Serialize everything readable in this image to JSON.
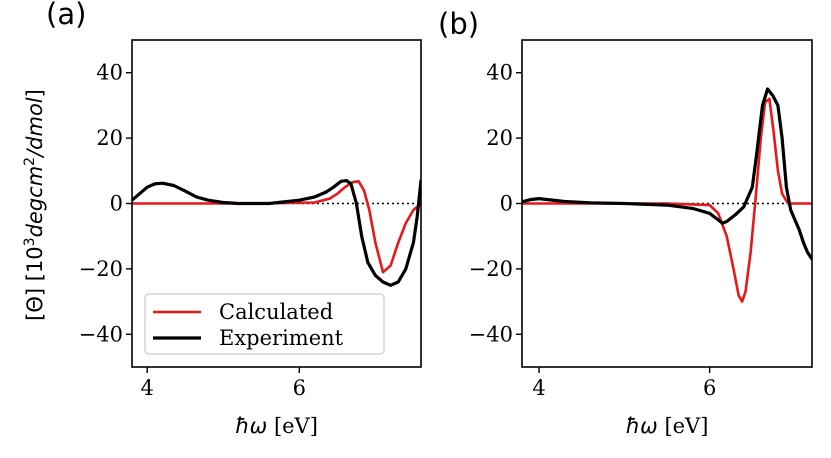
{
  "chart_data": [
    {
      "panel": "(a)",
      "type": "line",
      "xlabel_symbol": "ħω",
      "xlabel_unit": "[eV]",
      "ylabel": "[Θ] [10³degcm²/dmol]",
      "xlim": [
        3.8,
        7.6
      ],
      "ylim": [
        -50,
        50
      ],
      "xticks": [
        4,
        6
      ],
      "yticks": [
        -40,
        -20,
        0,
        20,
        40
      ],
      "reference_line": {
        "y": 0,
        "style": "dotted"
      },
      "legend": {
        "placement": "lower-left"
      },
      "series": [
        {
          "name": "Calculated",
          "color": "#e8171a",
          "x": [
            3.8,
            4.5,
            5.5,
            6.2,
            6.4,
            6.5,
            6.6,
            6.7,
            6.78,
            6.85,
            6.92,
            7.0,
            7.1,
            7.2,
            7.3,
            7.4,
            7.5,
            7.6
          ],
          "y": [
            0,
            0,
            0,
            0.3,
            1.5,
            3,
            5,
            6.5,
            6.8,
            4,
            -2,
            -12,
            -21,
            -19,
            -12,
            -6,
            -2,
            0
          ]
        },
        {
          "name": "Experiment",
          "color": "#000000",
          "x": [
            3.8,
            3.9,
            4.0,
            4.1,
            4.2,
            4.35,
            4.5,
            4.65,
            4.8,
            5.0,
            5.2,
            5.4,
            5.6,
            5.8,
            6.0,
            6.2,
            6.35,
            6.45,
            6.55,
            6.62,
            6.68,
            6.75,
            6.82,
            6.9,
            7.0,
            7.1,
            7.2,
            7.3,
            7.4,
            7.5,
            7.55,
            7.6
          ],
          "y": [
            1,
            3,
            5,
            6,
            6.2,
            5.5,
            3.8,
            2,
            1,
            0.3,
            0,
            0,
            0,
            0.5,
            1,
            2,
            3.5,
            5,
            6.8,
            7,
            6,
            0,
            -10,
            -18,
            -22,
            -24,
            -25,
            -24,
            -20,
            -12,
            -4,
            7
          ]
        }
      ]
    },
    {
      "panel": "(b)",
      "type": "line",
      "xlabel_symbol": "ħω",
      "xlabel_unit": "[eV]",
      "xlim": [
        3.8,
        7.2
      ],
      "ylim": [
        -50,
        50
      ],
      "xticks": [
        4,
        6
      ],
      "yticks": [
        -40,
        -20,
        0,
        20,
        40
      ],
      "reference_line": {
        "y": 0,
        "style": "dotted"
      },
      "series": [
        {
          "name": "Calculated",
          "color": "#e8171a",
          "x": [
            3.8,
            4.5,
            5.5,
            6.0,
            6.1,
            6.2,
            6.28,
            6.34,
            6.38,
            6.42,
            6.48,
            6.55,
            6.6,
            6.65,
            6.7,
            6.75,
            6.8,
            6.85,
            6.92,
            7.0,
            7.2
          ],
          "y": [
            0,
            0,
            0,
            -0.5,
            -3,
            -10,
            -20,
            -28,
            -30,
            -27,
            -15,
            5,
            20,
            31,
            32,
            22,
            10,
            3,
            0,
            0,
            0
          ]
        },
        {
          "name": "Experiment",
          "color": "#000000",
          "x": [
            3.8,
            3.9,
            4.0,
            4.1,
            4.3,
            4.6,
            5.0,
            5.5,
            5.8,
            6.0,
            6.05,
            6.1,
            6.15,
            6.2,
            6.3,
            6.4,
            6.5,
            6.55,
            6.62,
            6.68,
            6.74,
            6.8,
            6.85,
            6.9,
            6.95,
            7.0,
            7.05,
            7.1,
            7.15,
            7.2
          ],
          "y": [
            0.5,
            1.2,
            1.5,
            1.2,
            0.6,
            0.2,
            0,
            -0.5,
            -1.5,
            -3,
            -4,
            -5,
            -6,
            -5.5,
            -3.5,
            -1,
            5,
            15,
            30,
            35,
            33,
            30,
            20,
            5,
            -2,
            -5,
            -8,
            -12,
            -15,
            -17
          ]
        }
      ]
    }
  ]
}
